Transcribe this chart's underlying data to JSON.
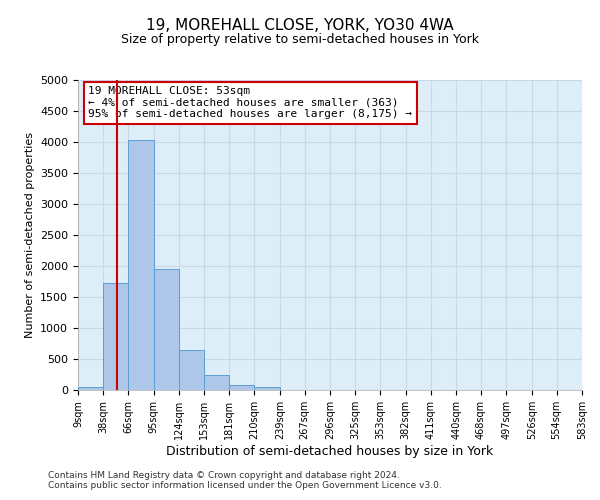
{
  "title": "19, MOREHALL CLOSE, YORK, YO30 4WA",
  "subtitle": "Size of property relative to semi-detached houses in York",
  "xlabel": "Distribution of semi-detached houses by size in York",
  "ylabel": "Number of semi-detached properties",
  "bin_edges": [
    9,
    38,
    66,
    95,
    124,
    153,
    181,
    210,
    239,
    267,
    296,
    325,
    353,
    382,
    411,
    440,
    468,
    497,
    526,
    554,
    583
  ],
  "bar_heights": [
    50,
    1725,
    4025,
    1950,
    650,
    245,
    85,
    50,
    0,
    0,
    0,
    0,
    0,
    0,
    0,
    0,
    0,
    0,
    0,
    0
  ],
  "bar_color": "#aec6e8",
  "bar_edgecolor": "#5a9fd4",
  "grid_color": "#c8d8e8",
  "background_color": "#ddeef8",
  "vline_x": 53,
  "vline_color": "#cc0000",
  "annotation_title": "19 MOREHALL CLOSE: 53sqm",
  "annotation_line1": "← 4% of semi-detached houses are smaller (363)",
  "annotation_line2": "95% of semi-detached houses are larger (8,175) →",
  "annotation_box_facecolor": "#ffffff",
  "annotation_box_edgecolor": "#cc0000",
  "tick_labels": [
    "9sqm",
    "38sqm",
    "66sqm",
    "95sqm",
    "124sqm",
    "153sqm",
    "181sqm",
    "210sqm",
    "239sqm",
    "267sqm",
    "296sqm",
    "325sqm",
    "353sqm",
    "382sqm",
    "411sqm",
    "440sqm",
    "468sqm",
    "497sqm",
    "526sqm",
    "554sqm",
    "583sqm"
  ],
  "ylim": [
    0,
    5000
  ],
  "yticks": [
    0,
    500,
    1000,
    1500,
    2000,
    2500,
    3000,
    3500,
    4000,
    4500,
    5000
  ],
  "footer_line1": "Contains HM Land Registry data © Crown copyright and database right 2024.",
  "footer_line2": "Contains public sector information licensed under the Open Government Licence v3.0."
}
